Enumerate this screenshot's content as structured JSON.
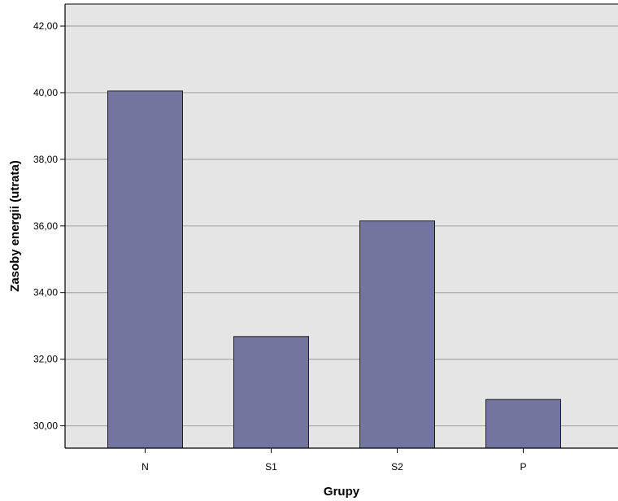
{
  "colors": {
    "plot_background": "#e5e5e5",
    "bar_fill": "#74759f",
    "bar_stroke": "#1f1f1f",
    "grid_line": "#a8a8a8",
    "axis_line": "#000000"
  },
  "chart_data": {
    "type": "bar",
    "title": "",
    "xlabel": "Grupy",
    "ylabel": "Zasoby energii (utrata)",
    "categories": [
      "N",
      "S1",
      "S2",
      "P"
    ],
    "values": [
      40.05,
      32.68,
      36.15,
      30.79
    ],
    "ylim": [
      29.33,
      42.66
    ],
    "yticks": [
      30,
      32,
      34,
      36,
      38,
      40,
      42
    ],
    "ytick_labels": [
      "30,00",
      "32,00",
      "34,00",
      "36,00",
      "38,00",
      "40,00",
      "42,00"
    ],
    "grid": true,
    "legend": "none"
  }
}
